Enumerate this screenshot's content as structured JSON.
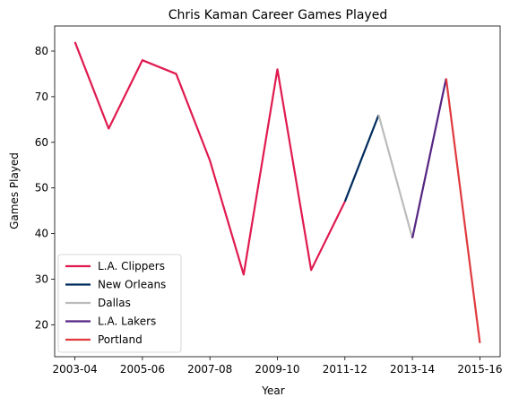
{
  "chart_data": {
    "type": "line",
    "title": "Chris Kaman Career Games Played",
    "xlabel": "Year",
    "ylabel": "Games Played",
    "x_ticks": [
      "2003-04",
      "2005-06",
      "2007-08",
      "2009-10",
      "2011-12",
      "2013-14",
      "2015-16"
    ],
    "y_ticks": [
      20,
      30,
      40,
      50,
      60,
      70,
      80
    ],
    "ylim": [
      13,
      85.5
    ],
    "grid": false,
    "legend_position": "lower-left",
    "series": [
      {
        "name": "L.A. Clippers",
        "color": "#e01a4f",
        "points": [
          [
            "2003-04",
            82
          ],
          [
            "2004-05",
            63
          ],
          [
            "2005-06",
            78
          ],
          [
            "2006-07",
            75
          ],
          [
            "2007-08",
            56
          ],
          [
            "2008-09",
            31
          ],
          [
            "2009-10",
            76
          ],
          [
            "2010-11",
            32
          ],
          [
            "2011-12",
            47
          ]
        ]
      },
      {
        "name": "New Orleans",
        "color": "#002b5c",
        "points": [
          [
            "2011-12",
            47
          ],
          [
            "2012-13",
            66
          ]
        ]
      },
      {
        "name": "Dallas",
        "color": "#bbbbbb",
        "points": [
          [
            "2012-13",
            66
          ],
          [
            "2013-14",
            39
          ]
        ]
      },
      {
        "name": "L.A. Lakers",
        "color": "#552583",
        "points": [
          [
            "2013-14",
            39
          ],
          [
            "2014-15",
            74
          ]
        ]
      },
      {
        "name": "Portland",
        "color": "#e03a3e",
        "points": [
          [
            "2014-15",
            74
          ],
          [
            "2015-16",
            16
          ]
        ]
      }
    ]
  }
}
